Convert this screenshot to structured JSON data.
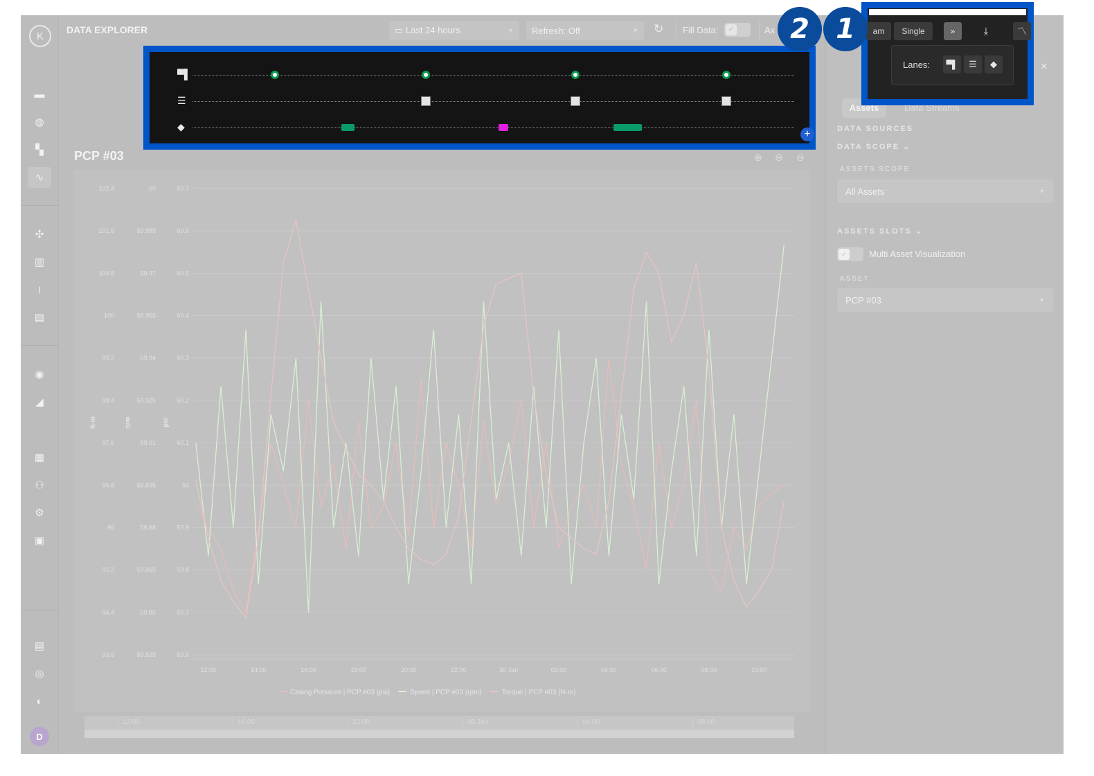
{
  "app": {
    "title": "DATA EXPLORER",
    "logo": "K",
    "avatar": "D"
  },
  "sidebar": {
    "icons": [
      "briefcase-icon",
      "globe-icon",
      "widgets-icon",
      "pulse-icon",
      "puzzle-icon",
      "bar-chart-icon",
      "route-icon",
      "barrier-icon",
      "gauge-icon",
      "trend-chart-icon",
      "dashboard-icon",
      "users-icon",
      "user-settings-icon",
      "code-icon",
      "document-icon",
      "support-icon",
      "language-icon"
    ],
    "active": "pulse-icon"
  },
  "toolbar": {
    "time_range": "Last 24 hours",
    "refresh": "Refresh: Off",
    "fill_data": "Fill Data:",
    "axes": "Ax",
    "mode_partial": "am",
    "single": "Single"
  },
  "lanes_popup": {
    "label": "Lanes:"
  },
  "annotations": {
    "badge1": "1",
    "badge2": "2"
  },
  "colors": {
    "highlight": "#0055c8",
    "badge": "#0a4b9c",
    "comment_marker": "#0a9b50",
    "tag_green": "#0a9b6a",
    "tag_magenta": "#e020e0",
    "speed": "#d8f0d2",
    "torque": "#e8c4c4",
    "pressure": "#e6bcbc"
  },
  "lanes": {
    "rows": [
      "comments",
      "settings",
      "tags"
    ],
    "comment_markers": 4,
    "setting_markers": 3,
    "tags": [
      {
        "color": "#0a9b6a"
      },
      {
        "color": "#e020e0"
      },
      {
        "color": "#0a9b6a"
      }
    ]
  },
  "chart": {
    "title": "PCP #03"
  },
  "chart_data": {
    "type": "line",
    "x_ticks": [
      "12:00",
      "14:00",
      "16:00",
      "18:00",
      "20:00",
      "22:00",
      "30 Jan",
      "02:00",
      "04:00",
      "06:00",
      "08:00",
      "10:00"
    ],
    "y_axes": [
      {
        "label": "N·m",
        "ticks": [
          "102.4",
          "101.6",
          "100.8",
          "100",
          "99.2",
          "98.4",
          "97.6",
          "96.8",
          "96",
          "95.2",
          "94.4",
          "93.6"
        ],
        "range": [
          93.6,
          102.4
        ]
      },
      {
        "label": "rpm",
        "ticks": [
          "60",
          "59.985",
          "59.97",
          "59.955",
          "59.94",
          "59.925",
          "59.91",
          "59.895",
          "59.88",
          "59.865",
          "59.85",
          "59.835"
        ],
        "range": [
          59.835,
          60
        ]
      },
      {
        "label": "psi",
        "ticks": [
          "60.7",
          "60.6",
          "60.5",
          "60.4",
          "60.3",
          "60.2",
          "60.1",
          "60",
          "59.9",
          "59.8",
          "59.7",
          "59.6"
        ],
        "range": [
          59.6,
          60.7
        ]
      }
    ],
    "x_range": [
      "29 Jan 11:22",
      "30 Jan 11:26"
    ],
    "x": [
      "29 Jan 11:30",
      "12:00",
      "12:30",
      "13:00",
      "13:30",
      "14:00",
      "14:30",
      "15:00",
      "15:30",
      "16:00",
      "16:30",
      "17:00",
      "17:30",
      "18:00",
      "18:30",
      "19:00",
      "19:30",
      "20:00",
      "20:30",
      "21:00",
      "21:30",
      "22:00",
      "22:30",
      "23:00",
      "23:30",
      "30 Jan 00:00",
      "00:30",
      "01:00",
      "01:30",
      "02:00",
      "02:30",
      "03:00",
      "03:30",
      "04:00",
      "04:30",
      "05:00",
      "05:30",
      "06:00",
      "06:30",
      "07:00",
      "07:30",
      "08:00",
      "08:30",
      "09:00",
      "09:30",
      "10:00",
      "10:30",
      "11:00"
    ],
    "series": [
      {
        "name": "Casing Pressure | PCP #03 (psi)",
        "axis": "psi",
        "values": [
          59.95,
          59.9,
          59.85,
          59.75,
          59.7,
          59.9,
          60.1,
          60.0,
          59.9,
          60.2,
          59.95,
          60.05,
          59.85,
          60.15,
          59.9,
          59.95,
          60.1,
          59.88,
          60.25,
          59.9,
          60.1,
          60.0,
          59.85,
          60.15,
          59.95,
          60.05,
          60.2,
          59.9,
          60.1,
          59.85,
          59.95,
          60.0,
          59.9,
          60.3,
          60.05,
          59.95,
          59.8,
          60.1,
          59.9,
          60.0,
          60.2,
          59.8,
          59.75,
          59.9,
          59.85,
          59.95,
          59.98,
          60.0
        ]
      },
      {
        "name": "Speed | PCP #03 (rpm)",
        "axis": "rpm",
        "values": [
          59.91,
          59.87,
          59.93,
          59.88,
          59.95,
          59.86,
          59.92,
          59.9,
          59.94,
          59.85,
          59.96,
          59.88,
          59.91,
          59.87,
          59.94,
          59.89,
          59.93,
          59.86,
          59.9,
          59.95,
          59.88,
          59.92,
          59.86,
          59.96,
          59.89,
          59.91,
          59.87,
          59.93,
          59.88,
          59.95,
          59.86,
          59.91,
          59.94,
          59.87,
          59.92,
          59.89,
          59.96,
          59.86,
          59.9,
          59.93,
          59.87,
          59.95,
          59.88,
          59.92,
          59.86,
          59.9,
          59.94,
          59.98
        ]
      },
      {
        "name": "Torque | PCP #03 (N·m)",
        "axis": "N·m",
        "values": [
          96.9,
          95.8,
          95.0,
          94.6,
          94.3,
          95.8,
          98.5,
          101.0,
          101.8,
          100.5,
          99.2,
          98.0,
          97.5,
          97.0,
          96.8,
          96.5,
          96.0,
          95.6,
          95.4,
          95.3,
          95.5,
          96.2,
          98.0,
          99.8,
          100.6,
          100.7,
          100.8,
          98.5,
          97.0,
          96.0,
          95.8,
          95.6,
          95.5,
          96.5,
          98.5,
          100.5,
          101.2,
          100.8,
          99.5,
          100.0,
          101.0,
          99.0,
          96.0,
          95.0,
          94.5,
          94.8,
          95.2,
          96.5
        ]
      }
    ],
    "grid": true,
    "legend": "bottom"
  },
  "navigator": {
    "ticks": [
      "12:00",
      "16:00",
      "20:00",
      "30 Jan",
      "04:00",
      "08:00"
    ]
  },
  "right_panel": {
    "title": "DATA SOURCES",
    "close": "×",
    "tabs": [
      "Assets",
      "Data Streams"
    ],
    "data_scope": "DATA SCOPE",
    "assets_scope_label": "ASSETS SCOPE",
    "assets_scope_value": "All Assets",
    "assets_slots": "ASSETS SLOTS",
    "multi_asset": "Multi Asset Visualization",
    "asset_label": "ASSET",
    "asset_value": "PCP #03"
  }
}
